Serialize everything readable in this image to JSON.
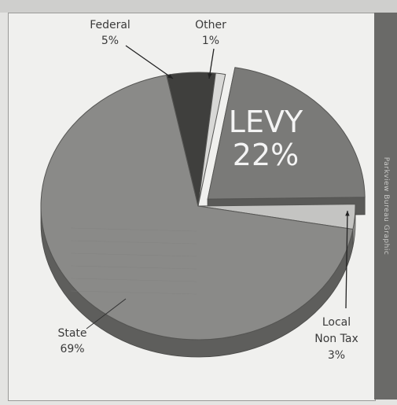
{
  "chart_data": {
    "type": "pie",
    "style": "3d",
    "slices": [
      {
        "key": "levy",
        "label": "LEVY",
        "value": 22,
        "value_label": "22%",
        "exploded": true,
        "color": "#7a7a78",
        "side_color": "#5a5a58"
      },
      {
        "key": "local",
        "label": "Local Non Tax",
        "label_lines": [
          "Local",
          "Non Tax"
        ],
        "value": 3,
        "value_label": "3%",
        "exploded": false,
        "color": "#c4c4c2",
        "side_color": "#9a9a98"
      },
      {
        "key": "state",
        "label": "State",
        "value": 69,
        "value_label": "69%",
        "exploded": false,
        "color": "#8a8a88",
        "side_color": "#5e5e5c"
      },
      {
        "key": "federal",
        "label": "Federal",
        "value": 5,
        "value_label": "5%",
        "exploded": false,
        "color": "#3f3f3d",
        "side_color": "#2a2a28"
      },
      {
        "key": "other",
        "label": "Other",
        "value": 1,
        "value_label": "1%",
        "exploded": false,
        "color": "#d8d8d6",
        "side_color": "#aaaaa8"
      }
    ],
    "start_angle_deg": -80
  },
  "side_credit": "Parkview Bureau Graphic",
  "colors": {
    "background": "#e4e4e2",
    "panel": "#f0f0ee",
    "side_bar": "#6a6a68"
  }
}
